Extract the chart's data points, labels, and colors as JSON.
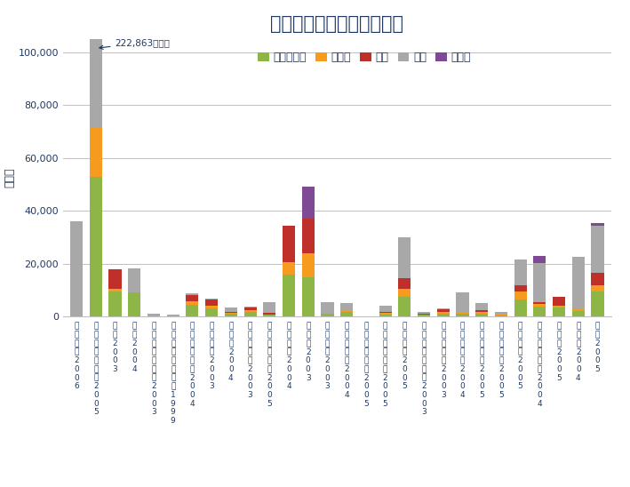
{
  "title": "各国の一般廃棄物処分状況",
  "ylabel": "千トン",
  "annotation": "222,863千トン",
  "categories_main": [
    "メキシコ",
    "アメリカ合衆国",
    "日本",
    "韓国",
    "オーストラリア",
    "ニュージーランド",
    "オーストリア",
    "ベルギー",
    "チェコ",
    "デンマーク",
    "フィンランド",
    "フランス",
    "ドイツ",
    "ギリシャ",
    "ハンガリー",
    "アイスランド",
    "アイルランド",
    "イタリア",
    "ルクセンブルク",
    "ノルウェー",
    "ポーランド",
    "ポルトガル",
    "スロバキア",
    "スペイン",
    "スウェーデン",
    "スイス",
    "トルコ",
    "英国"
  ],
  "categories_year": [
    "2006",
    "2005",
    "2003",
    "2004",
    "2003",
    "1999",
    "2004",
    "2003",
    "2004",
    "2003",
    "2005",
    "2004",
    "2003",
    "2003",
    "2004",
    "2005",
    "2005",
    "2005",
    "2003",
    "2003",
    "2004",
    "2005",
    "2005",
    "2005",
    "2004",
    "2005",
    "2004",
    "2005"
  ],
  "legend_labels": [
    "リサイクル",
    "堆肥化",
    "焼却",
    "埋立",
    "その他"
  ],
  "colors": [
    "#8db646",
    "#f79b1e",
    "#c0302a",
    "#a8a8a8",
    "#7f4996"
  ],
  "recycle": [
    0,
    53000,
    9500,
    9300,
    0,
    0,
    4300,
    3200,
    1000,
    1700,
    700,
    16000,
    15000,
    1000,
    1800,
    0,
    900,
    7500,
    700,
    1200,
    1000,
    1100,
    400,
    6500,
    3800,
    3300,
    2000,
    9500
  ],
  "compost": [
    0,
    18500,
    900,
    0,
    0,
    0,
    1500,
    900,
    300,
    800,
    200,
    4500,
    9000,
    200,
    500,
    0,
    600,
    3000,
    200,
    700,
    300,
    500,
    200,
    3000,
    1000,
    900,
    600,
    2500
  ],
  "incinerate": [
    0,
    0,
    7500,
    0,
    0,
    0,
    2500,
    2200,
    300,
    900,
    600,
    14000,
    13000,
    0,
    0,
    0,
    200,
    4000,
    300,
    700,
    100,
    900,
    100,
    2200,
    700,
    3100,
    200,
    4500
  ],
  "landfill": [
    36000,
    126000,
    0,
    9000,
    1100,
    900,
    500,
    600,
    1800,
    500,
    3800,
    0,
    0,
    4200,
    2800,
    200,
    2500,
    15500,
    400,
    400,
    7700,
    2600,
    1100,
    9800,
    14900,
    0,
    19700,
    18000
  ],
  "other": [
    0,
    24863,
    0,
    0,
    0,
    0,
    0,
    0,
    0,
    0,
    0,
    0,
    12000,
    0,
    0,
    0,
    0,
    0,
    0,
    0,
    0,
    0,
    0,
    0,
    2600,
    0,
    0,
    1000
  ],
  "ylim": [
    0,
    105000
  ],
  "yticks": [
    0,
    20000,
    40000,
    60000,
    80000,
    100000
  ],
  "ytick_labels": [
    "0",
    "20,000",
    "40,000",
    "60,000",
    "80,000",
    "100,000"
  ],
  "background_color": "#ffffff",
  "grid_color": "#c0c0c0",
  "title_color": "#1f3864",
  "axis_color": "#1f3864",
  "title_fontsize": 15,
  "legend_fontsize": 9,
  "tick_fontsize": 8,
  "xtick_fontsize": 6.5
}
